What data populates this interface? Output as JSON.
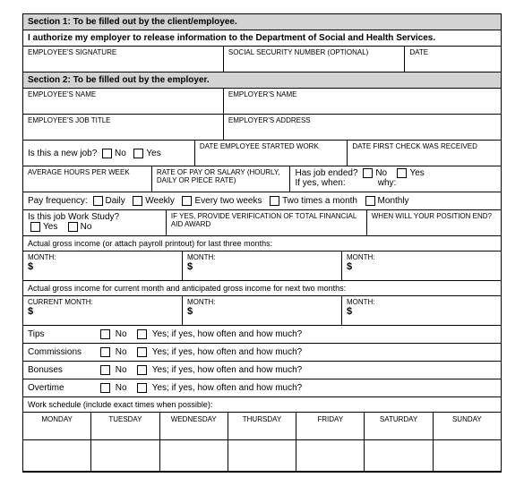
{
  "section1": {
    "title": "Section 1:  To be filled out by the client/employee.",
    "auth_text": "I authorize my employer to release information to the Department of Social and Health Services.",
    "sig_label": "EMPLOYEE'S SIGNATURE",
    "ssn_label": "SOCIAL SECURITY NUMBER (OPTIONAL)",
    "date_label": "DATE"
  },
  "section2": {
    "title": "Section 2:  To be filled out by the employer.",
    "emp_name": "EMPLOYEE'S NAME",
    "employer_name": "EMPLOYER'S NAME",
    "job_title": "EMPLOYEE'S JOB TITLE",
    "employer_addr": "EMPLOYER'S ADDRESS"
  },
  "newjob": {
    "q": "Is this a new job?",
    "no": "No",
    "yes": "Yes",
    "start_label": "DATE EMPLOYEE STARTED WORK",
    "first_check": "DATE FIRST CHECK WAS RECEIVED"
  },
  "pay": {
    "avg_hours": "AVERAGE HOURS PER WEEK",
    "rate": "RATE OF PAY OR SALARY (HOURLY, DAILY OR PIECE RATE)",
    "ended_q": "Has job ended?",
    "ended_when": "If yes, when:",
    "ended_why": "why:",
    "no": "No",
    "yes": "Yes"
  },
  "freq": {
    "label": "Pay frequency:",
    "daily": "Daily",
    "weekly": "Weekly",
    "two_weeks": "Every two weeks",
    "two_month": "Two times a month",
    "monthly": "Monthly"
  },
  "workstudy": {
    "q": "Is this job Work Study?",
    "yes": "Yes",
    "no": "No",
    "verify": "IF YES, PROVIDE VERIFICATION OF TOTAL FINANCIAL AID AWARD",
    "end": "WHEN WILL YOUR POSITION END?"
  },
  "income1": {
    "header": "Actual gross income (or attach payroll printout) for last three months:",
    "month": "MONTH:",
    "dollar": "$"
  },
  "income2": {
    "header": "Actual gross income for current month and anticipated gross income for next two months:",
    "current": "CURRENT MONTH:",
    "month": "MONTH:",
    "dollar": "$"
  },
  "items": {
    "tips": "Tips",
    "commissions": "Commissions",
    "bonuses": "Bonuses",
    "overtime": "Overtime",
    "no": "No",
    "yes_how": "Yes; if yes, how often and how much?"
  },
  "schedule": {
    "header": "Work schedule (include exact times when possible):",
    "days": [
      "MONDAY",
      "TUESDAY",
      "WEDNESDAY",
      "THURSDAY",
      "FRIDAY",
      "SATURDAY",
      "SUNDAY"
    ]
  }
}
